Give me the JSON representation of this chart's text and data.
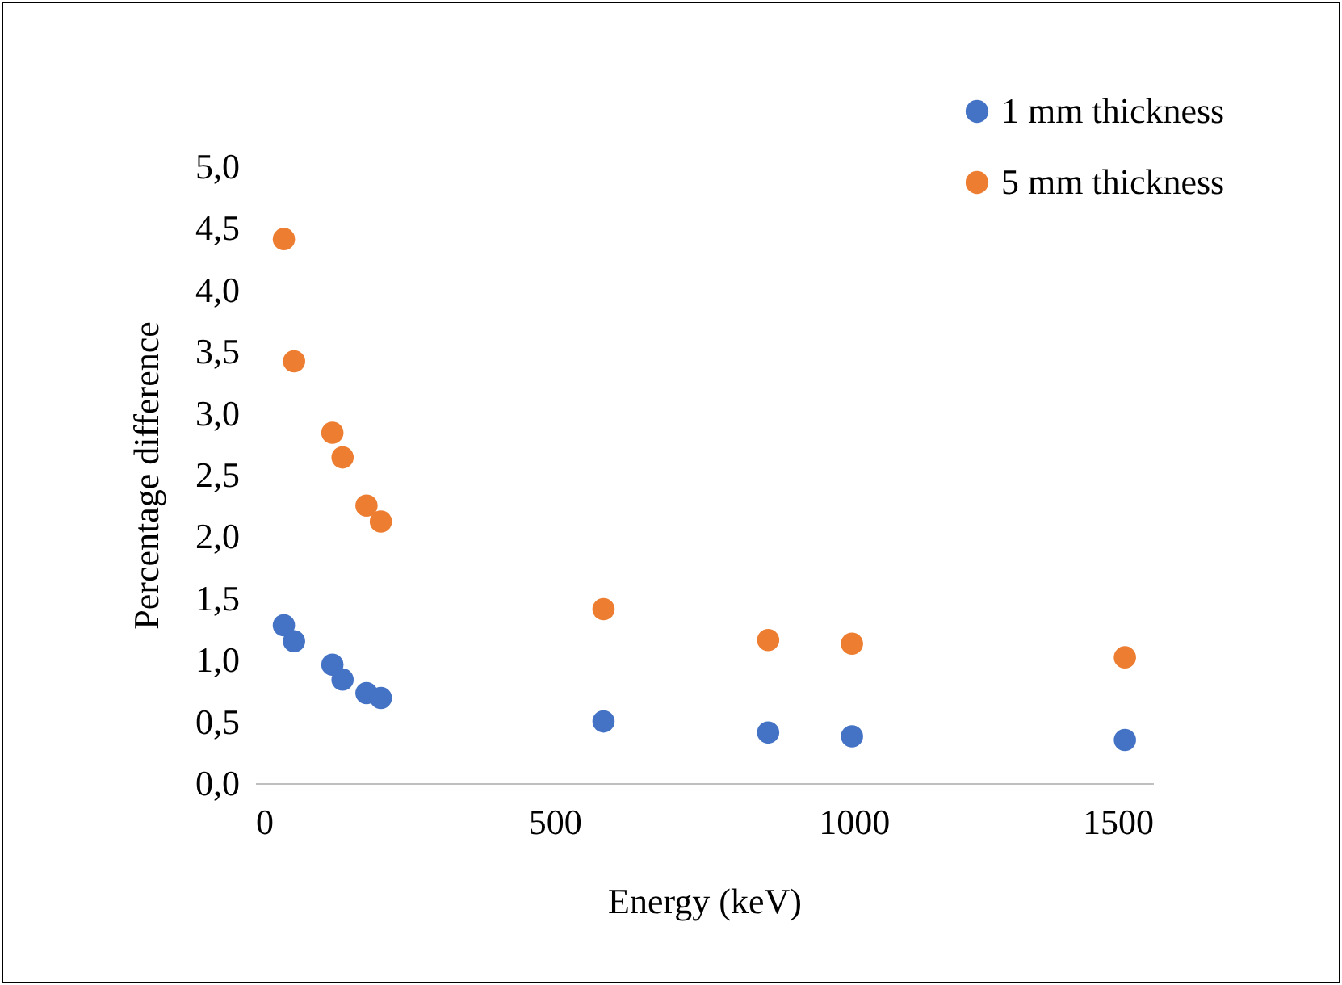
{
  "chart_data": {
    "type": "scatter",
    "xlabel": "Energy (keV)",
    "ylabel": "Percentage difference",
    "xlim": [
      0,
      1500
    ],
    "xticks": [
      0,
      500,
      1000,
      1500
    ],
    "ylim": [
      0,
      5
    ],
    "yticks": [
      {
        "value": 0,
        "label": "0,0"
      },
      {
        "value": 0.5,
        "label": "0,5"
      },
      {
        "value": 1,
        "label": "1,0"
      },
      {
        "value": 1.5,
        "label": "1,5"
      },
      {
        "value": 2,
        "label": "2,0"
      },
      {
        "value": 2.5,
        "label": "2,5"
      },
      {
        "value": 3,
        "label": "3,0"
      },
      {
        "value": 3.5,
        "label": "3,5"
      },
      {
        "value": 4,
        "label": "4,0"
      },
      {
        "value": 4.5,
        "label": "4,5"
      },
      {
        "value": 5,
        "label": "5,0"
      }
    ],
    "x": [
      48,
      65,
      129,
      146,
      186,
      210,
      582,
      857,
      997,
      1453
    ],
    "series": [
      {
        "name": "1 mm thickness",
        "color": "#4472c4",
        "values": [
          1.28,
          1.15,
          0.96,
          0.84,
          0.73,
          0.69,
          0.5,
          0.41,
          0.38,
          0.35
        ]
      },
      {
        "name": "5 mm thickness",
        "color": "#ed7d31",
        "values": [
          4.41,
          3.42,
          2.84,
          2.64,
          2.25,
          2.12,
          1.41,
          1.16,
          1.13,
          1.02
        ]
      }
    ],
    "grid": false,
    "legend": "top right",
    "marker": "circle"
  }
}
